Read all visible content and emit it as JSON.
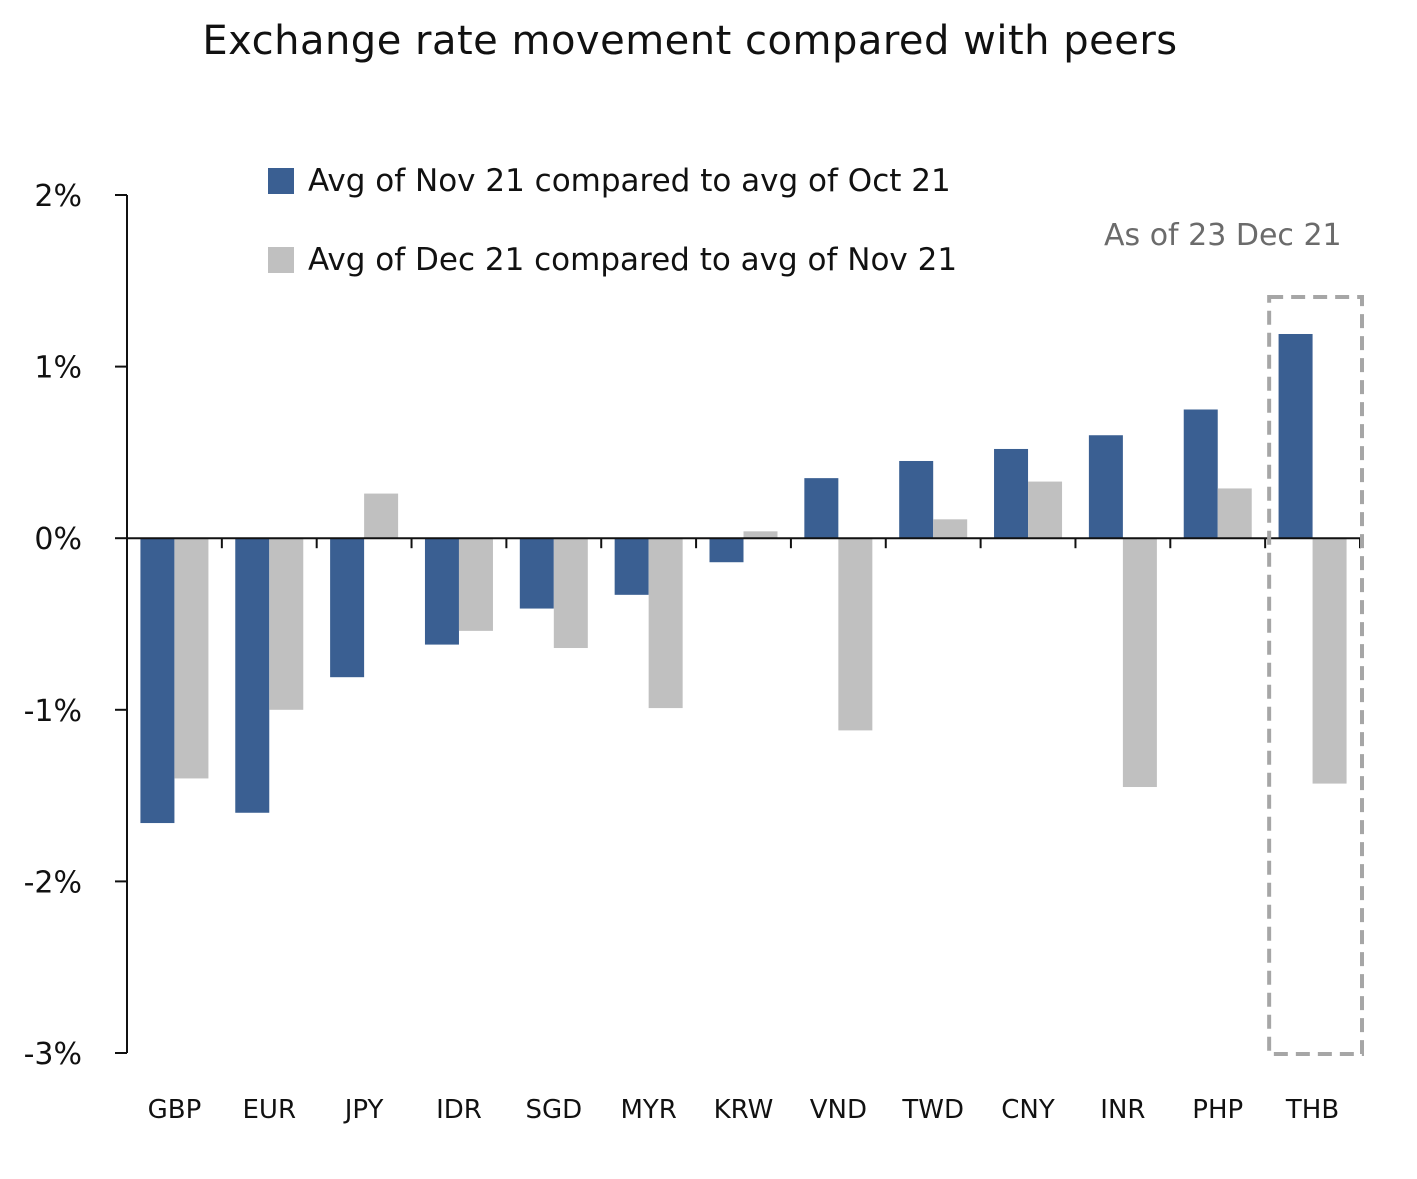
{
  "chart_data": {
    "type": "bar",
    "title": "Exchange rate movement compared with peers",
    "categories": [
      "GBP",
      "EUR",
      "JPY",
      "IDR",
      "SGD",
      "MYR",
      "KRW",
      "VND",
      "TWD",
      "CNY",
      "INR",
      "PHP",
      "THB"
    ],
    "series": [
      {
        "name": "Avg of Nov 21 compared to avg of Oct 21",
        "color": "#3a5f92",
        "values": [
          -1.66,
          -1.6,
          -0.81,
          -0.62,
          -0.41,
          -0.33,
          -0.14,
          0.35,
          0.45,
          0.52,
          0.6,
          0.75,
          1.19
        ]
      },
      {
        "name": "Avg of Dec 21 compared to avg of Nov 21",
        "color": "#c0c0c0",
        "values": [
          -1.4,
          -1.0,
          0.26,
          -0.54,
          -0.64,
          -0.99,
          0.04,
          -1.12,
          0.11,
          0.33,
          -1.45,
          0.29,
          -1.43
        ]
      }
    ],
    "ylim": [
      -3,
      2
    ],
    "yticks": [
      2,
      1,
      0,
      -1,
      -2,
      -3
    ],
    "ytick_labels": [
      "2%",
      "1%",
      "0%",
      "-1%",
      "-2%",
      "-3%"
    ],
    "annotation": "As of 23 Dec 21",
    "highlight_category": "THB",
    "highlight_color": "#a6a6a6",
    "legend_position": "top-left",
    "grid": false
  }
}
